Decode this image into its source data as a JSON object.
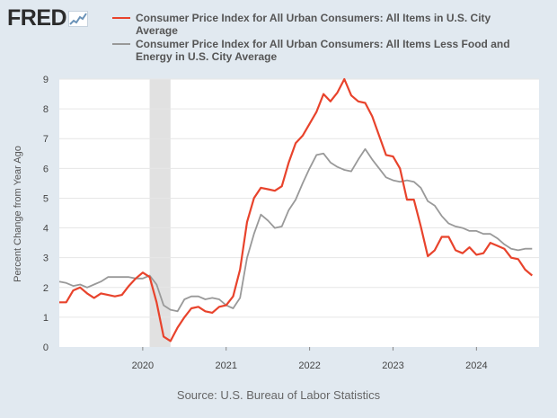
{
  "logo": {
    "text": "FRED",
    "icon": "fred-chart-icon"
  },
  "source": "Source: U.S. Bureau of Labor Statistics",
  "colors": {
    "background": "#e1e9f0",
    "plot": "#ffffff",
    "cpi": "#e8432c",
    "core": "#999999",
    "recession": "#e1e1e1",
    "grid": "#e6e6e6"
  },
  "chart_data": {
    "type": "line",
    "ylabel": "Percent Change from Year Ago",
    "xlabel": "",
    "xlim": [
      2019.0,
      2024.75
    ],
    "ylim": [
      0,
      9
    ],
    "yticks": [
      "0",
      "1",
      "2",
      "3",
      "4",
      "5",
      "6",
      "7",
      "8",
      "9"
    ],
    "xticks": [
      "2020",
      "2021",
      "2022",
      "2023",
      "2024"
    ],
    "grid": "horizontal",
    "legend_position": "top",
    "recession_shading": [
      [
        2020.083,
        2020.333
      ]
    ],
    "x_start": "2019-01",
    "x_frequency": "monthly",
    "series": [
      {
        "name": "Consumer Price Index for All Urban Consumers: All Items in U.S. City Average",
        "values": [
          1.5,
          1.5,
          1.9,
          2.0,
          1.8,
          1.65,
          1.8,
          1.75,
          1.7,
          1.75,
          2.05,
          2.3,
          2.5,
          2.35,
          1.5,
          0.35,
          0.2,
          0.65,
          1.0,
          1.3,
          1.35,
          1.2,
          1.15,
          1.35,
          1.4,
          1.7,
          2.6,
          4.2,
          5.0,
          5.35,
          5.3,
          5.25,
          5.4,
          6.2,
          6.85,
          7.1,
          7.5,
          7.9,
          8.5,
          8.25,
          8.55,
          9.0,
          8.45,
          8.25,
          8.2,
          7.75,
          7.1,
          6.45,
          6.4,
          6.0,
          4.95,
          4.95,
          4.05,
          3.05,
          3.25,
          3.7,
          3.7,
          3.25,
          3.15,
          3.35,
          3.1,
          3.15,
          3.5,
          3.4,
          3.3,
          3.0,
          2.95,
          2.6,
          2.4
        ]
      },
      {
        "name": "Consumer Price Index for All Urban Consumers: All Items Less Food and Energy in U.S. City Average",
        "values": [
          2.2,
          2.15,
          2.05,
          2.1,
          2.0,
          2.1,
          2.2,
          2.35,
          2.35,
          2.35,
          2.35,
          2.3,
          2.3,
          2.4,
          2.1,
          1.4,
          1.25,
          1.2,
          1.6,
          1.7,
          1.7,
          1.6,
          1.65,
          1.6,
          1.4,
          1.3,
          1.65,
          3.0,
          3.8,
          4.45,
          4.25,
          4.0,
          4.05,
          4.6,
          4.95,
          5.5,
          6.0,
          6.45,
          6.5,
          6.2,
          6.05,
          5.95,
          5.9,
          6.3,
          6.65,
          6.3,
          6.0,
          5.7,
          5.6,
          5.55,
          5.6,
          5.55,
          5.35,
          4.9,
          4.75,
          4.4,
          4.15,
          4.05,
          4.0,
          3.9,
          3.9,
          3.8,
          3.8,
          3.65,
          3.45,
          3.3,
          3.25,
          3.3,
          3.3
        ]
      }
    ]
  }
}
